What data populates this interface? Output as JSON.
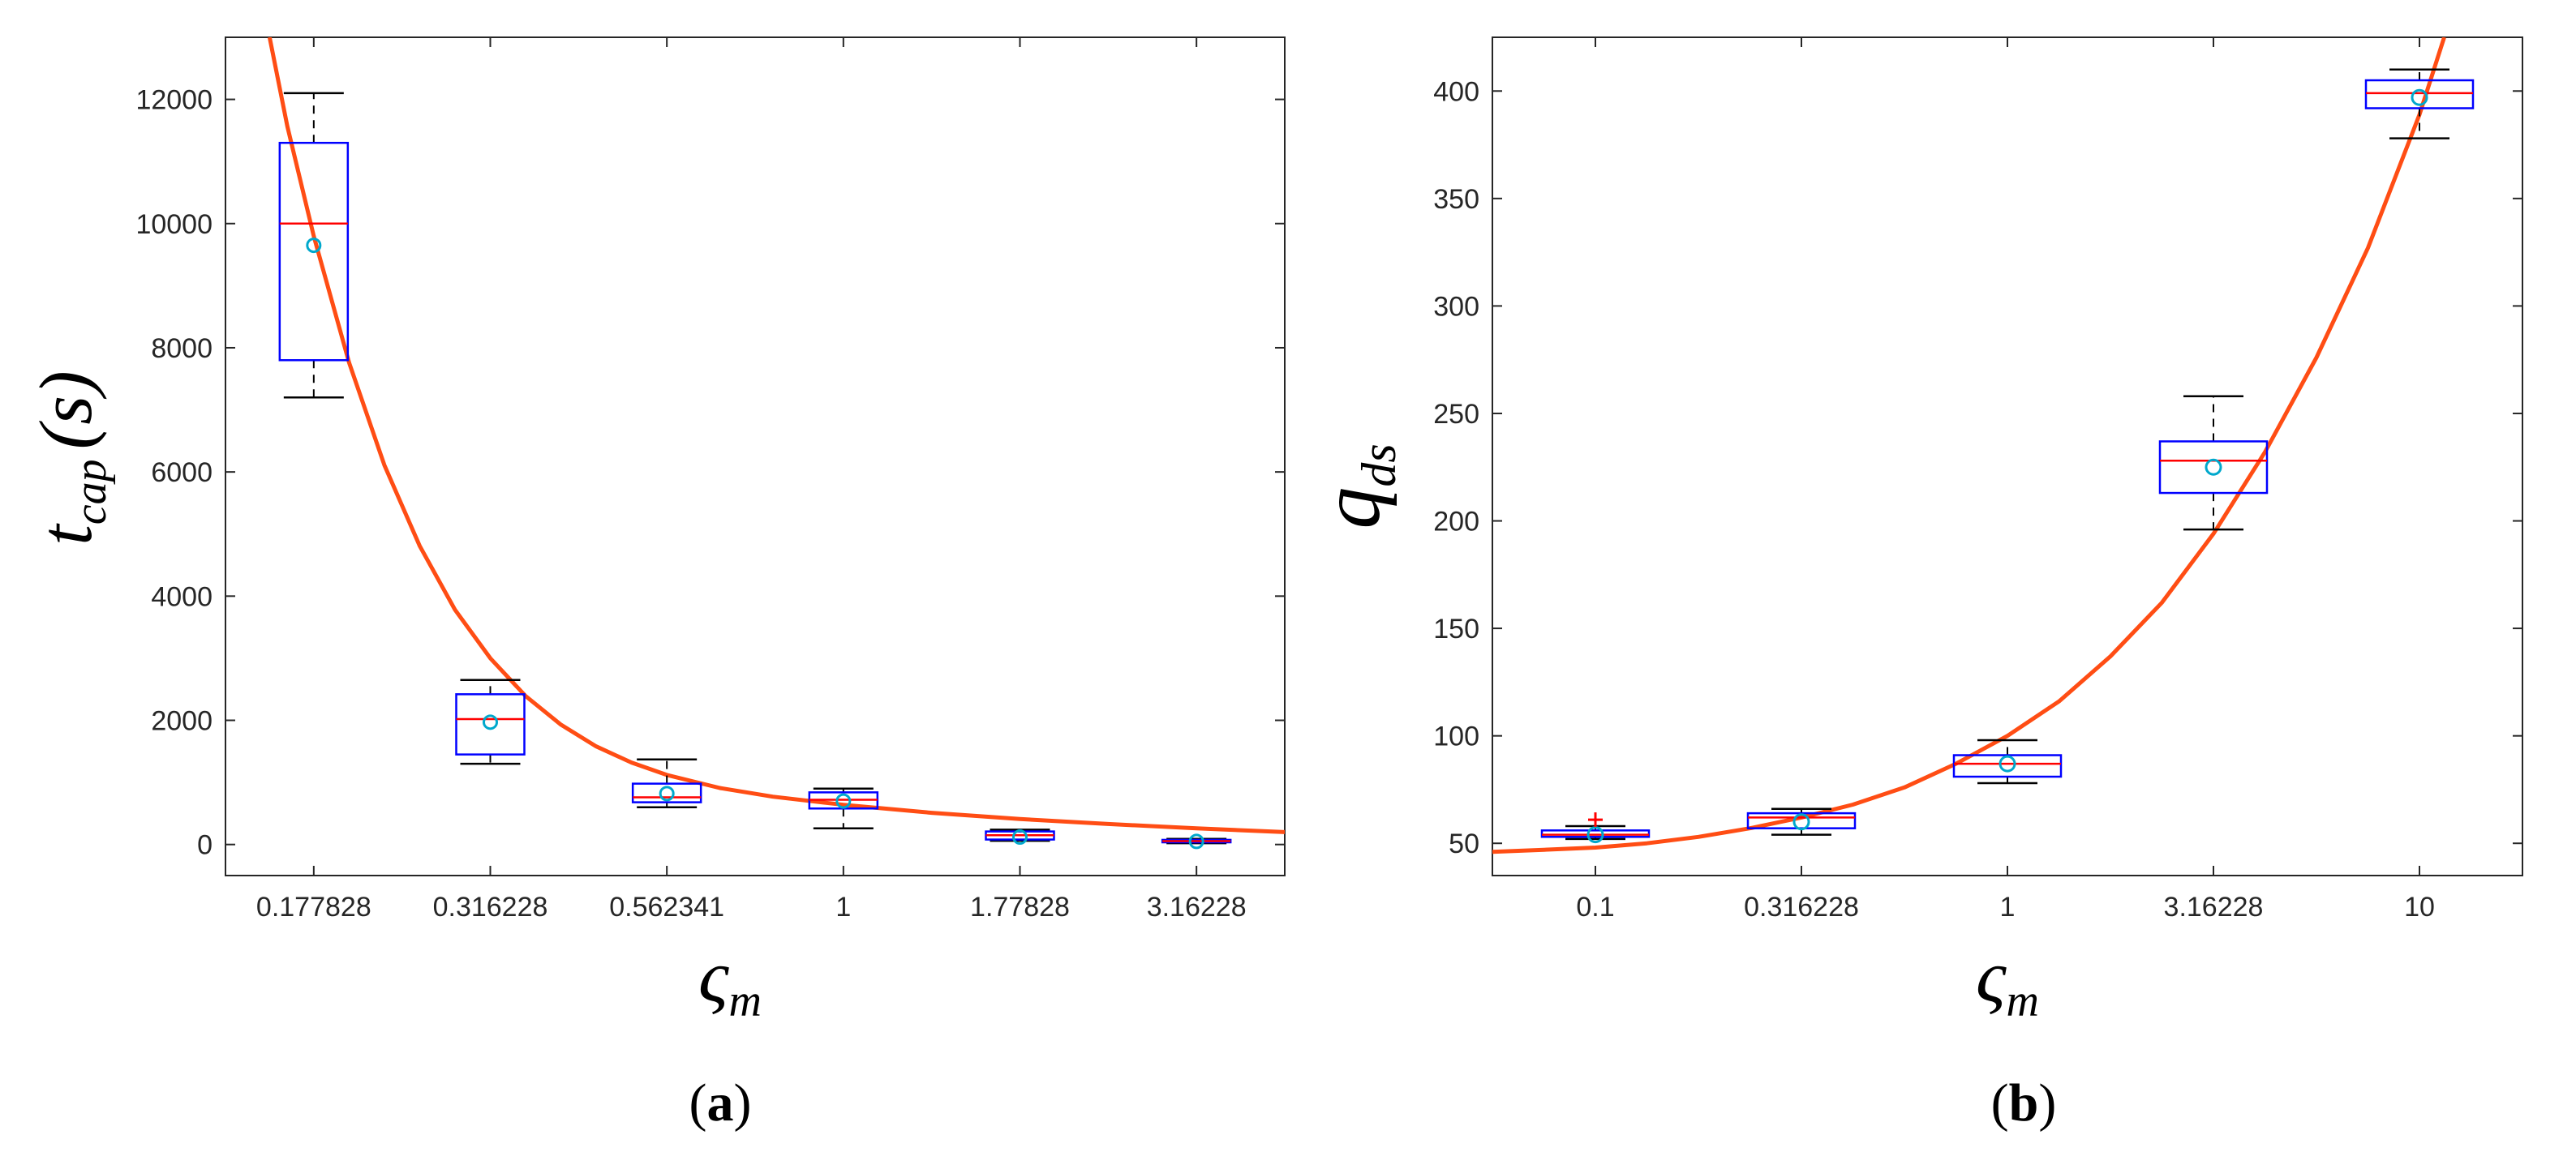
{
  "chart_data": [
    {
      "type": "boxplot",
      "panel_label": "a",
      "xlabel": {
        "symbol": "ς",
        "subscript": "m"
      },
      "ylabel": {
        "symbol": "t",
        "subscript": "cap",
        "unit": "(s)"
      },
      "categories": [
        "0.177828",
        "0.316228",
        "0.562341",
        "1",
        "1.77828",
        "3.16228"
      ],
      "ylim": [
        -500,
        13000
      ],
      "yticks": [
        0,
        2000,
        4000,
        6000,
        8000,
        10000,
        12000
      ],
      "boxes": [
        {
          "whisker_low": 7200,
          "q1": 7800,
          "median": 10000,
          "q3": 11300,
          "whisker_high": 12100,
          "mean": 9650,
          "outliers": []
        },
        {
          "whisker_low": 1300,
          "q1": 1450,
          "median": 2020,
          "q3": 2420,
          "whisker_high": 2650,
          "mean": 1970,
          "outliers": []
        },
        {
          "whisker_low": 600,
          "q1": 680,
          "median": 760,
          "q3": 980,
          "whisker_high": 1370,
          "mean": 820,
          "outliers": []
        },
        {
          "whisker_low": 260,
          "q1": 580,
          "median": 720,
          "q3": 840,
          "whisker_high": 900,
          "mean": 700,
          "outliers": []
        },
        {
          "whisker_low": 60,
          "q1": 80,
          "median": 150,
          "q3": 210,
          "whisker_high": 240,
          "mean": 120,
          "outliers": []
        },
        {
          "whisker_low": 20,
          "q1": 35,
          "median": 55,
          "q3": 75,
          "whisker_high": 90,
          "mean": 50,
          "outliers": []
        }
      ],
      "fit_curve": {
        "label": "fit",
        "x": [
          0.75,
          0.85,
          1.0,
          1.2,
          1.4,
          1.6,
          1.8,
          2.0,
          2.2,
          2.4,
          2.6,
          2.8,
          3.0,
          3.3,
          3.6,
          4.0,
          4.5,
          5.0,
          5.5,
          6.0,
          6.5
        ],
        "y": [
          13000,
          11570,
          9800,
          7760,
          6110,
          4810,
          3780,
          3000,
          2390,
          1930,
          1580,
          1320,
          1120,
          910,
          770,
          640,
          510,
          410,
          330,
          260,
          200
        ]
      },
      "colors": {
        "box": "#0000ff",
        "median": "#ff0000",
        "whisker": "#000000",
        "mean": "#00a8cc",
        "fit": "#ff4d14"
      }
    },
    {
      "type": "boxplot",
      "panel_label": "b",
      "xlabel": {
        "symbol": "ς",
        "subscript": "m"
      },
      "ylabel": {
        "symbol": "q",
        "subscript": "ds"
      },
      "categories": [
        "0.1",
        "0.316228",
        "1",
        "3.16228",
        "10"
      ],
      "ylim": [
        35,
        425
      ],
      "yticks": [
        50,
        100,
        150,
        200,
        250,
        300,
        350,
        400
      ],
      "boxes": [
        {
          "whisker_low": 52,
          "q1": 53,
          "median": 54,
          "q3": 56,
          "whisker_high": 58,
          "mean": 54,
          "outliers": [
            61
          ]
        },
        {
          "whisker_low": 54,
          "q1": 57,
          "median": 62,
          "q3": 64,
          "whisker_high": 66,
          "mean": 60,
          "outliers": []
        },
        {
          "whisker_low": 78,
          "q1": 81,
          "median": 87,
          "q3": 91,
          "whisker_high": 98,
          "mean": 87,
          "outliers": []
        },
        {
          "whisker_low": 196,
          "q1": 213,
          "median": 228,
          "q3": 237,
          "whisker_high": 258,
          "mean": 225,
          "outliers": []
        },
        {
          "whisker_low": 378,
          "q1": 392,
          "median": 399,
          "q3": 405,
          "whisker_high": 410,
          "mean": 397,
          "outliers": []
        }
      ],
      "fit_curve": {
        "label": "fit",
        "x": [
          0.5,
          0.75,
          1.0,
          1.25,
          1.5,
          1.75,
          2.0,
          2.25,
          2.5,
          2.75,
          3.0,
          3.25,
          3.5,
          3.75,
          4.0,
          4.25,
          4.5,
          4.75,
          5.0,
          5.12
        ],
        "y": [
          46,
          47,
          48,
          50,
          53,
          57,
          62,
          68,
          76,
          87,
          100,
          116,
          137,
          162,
          194,
          232,
          276,
          327,
          389,
          425
        ]
      },
      "colors": {
        "box": "#0000ff",
        "median": "#ff0000",
        "whisker": "#000000",
        "mean": "#00a8cc",
        "fit": "#ff4d14",
        "outlier": "#ff0000"
      }
    }
  ]
}
